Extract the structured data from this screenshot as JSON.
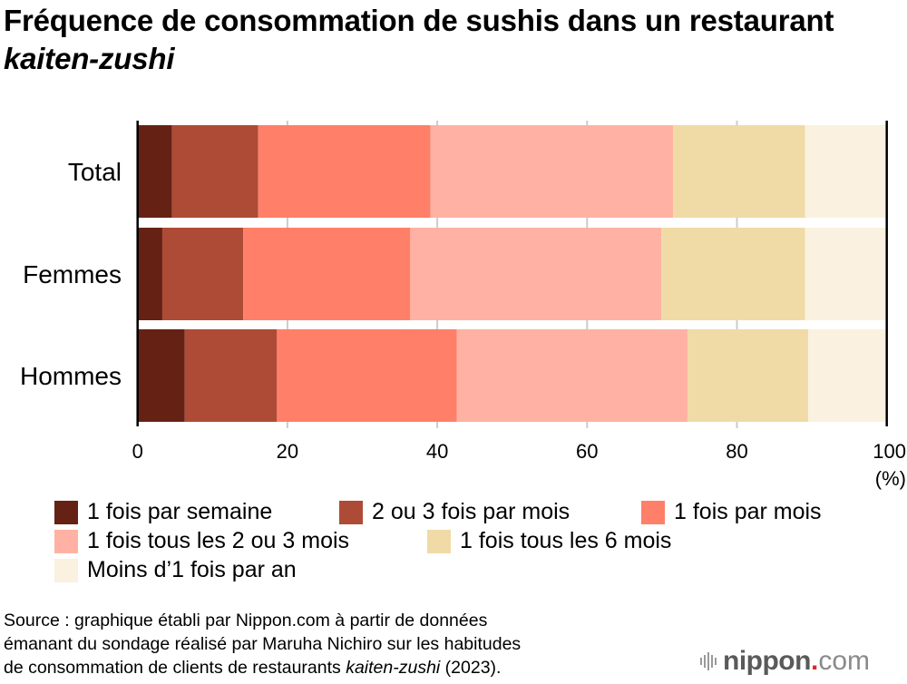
{
  "title": {
    "main": "Fréquence de consommation de sushis dans un restaurant ",
    "italic": "kaiten-zushi"
  },
  "chart_data": {
    "type": "bar",
    "orientation": "horizontal",
    "stacked": true,
    "title": "Fréquence de consommation de sushis dans un restaurant kaiten-zushi",
    "xlabel": "",
    "ylabel": "",
    "unit_label": "(%)",
    "xlim": [
      0,
      100
    ],
    "xticks": [
      0,
      20,
      40,
      60,
      80,
      100
    ],
    "grid": true,
    "legend_position": "bottom",
    "categories": [
      "Total",
      "Femmes",
      "Hommes"
    ],
    "series": [
      {
        "name": "1 fois par semaine",
        "color": "#662115",
        "values": [
          4.6,
          3.3,
          6.3
        ]
      },
      {
        "name": "2 ou 3 fois par mois",
        "color": "#ae4b36",
        "values": [
          11.5,
          10.8,
          12.3
        ]
      },
      {
        "name": "1 fois par mois",
        "color": "#ff7f68",
        "values": [
          23.0,
          22.3,
          24.0
        ]
      },
      {
        "name": "1 fois tous les 2 ou 3 mois",
        "color": "#ffb2a3",
        "values": [
          32.4,
          33.5,
          30.8
        ]
      },
      {
        "name": "1 fois tous les 6 mois",
        "color": "#f0dba6",
        "values": [
          17.6,
          19.2,
          16.1
        ]
      },
      {
        "name": "Moins d’1 fois par an",
        "color": "#faf1e0",
        "values": [
          10.9,
          10.9,
          10.5
        ]
      }
    ]
  },
  "source": {
    "line1": "Source : graphique établi par Nippon.com à partir de données",
    "line2": "émanant du sondage réalisé par Maruha Nichiro sur les habitudes",
    "line3_prefix": "de consommation de clients de restaurants ",
    "line3_italic": "kaiten-zushi",
    "line3_suffix": " (2023)."
  },
  "logo": {
    "brand": "nippon",
    "dot": ".",
    "tld": "com"
  }
}
